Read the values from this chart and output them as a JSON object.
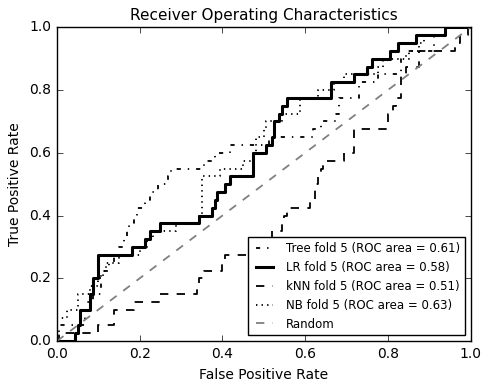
{
  "title": "Receiver Operating Characteristics",
  "xlabel": "False Positive Rate",
  "ylabel": "True Positive Rate",
  "xlim": [
    0.0,
    1.0
  ],
  "ylim": [
    0.0,
    1.0
  ],
  "xticks": [
    0.0,
    0.2,
    0.4,
    0.6,
    0.8,
    1.0
  ],
  "yticks": [
    0.0,
    0.2,
    0.4,
    0.6,
    0.8,
    1.0
  ],
  "legend_labels": [
    "Tree fold 5 (ROC area = 0.61)",
    "LR fold 5 (ROC area = 0.58)",
    "kNN fold 5 (ROC area = 0.51)",
    "NB fold 5 (ROC area = 0.63)",
    "Random"
  ],
  "line_styles": [
    "dashdot",
    "solid",
    "dashed",
    "dotted",
    "dashed"
  ],
  "line_colors": [
    "black",
    "black",
    "black",
    "black",
    "gray"
  ],
  "line_widths": [
    1.3,
    2.2,
    1.3,
    1.3,
    1.3
  ],
  "target_aucs": [
    0.61,
    0.58,
    0.51,
    0.63
  ],
  "curve_seeds": [
    7,
    13,
    99,
    3
  ],
  "n_points": 300,
  "background_color": "white",
  "title_fontsize": 11,
  "label_fontsize": 10,
  "tick_fontsize": 10,
  "legend_fontsize": 8.5,
  "legend_loc": "lower right"
}
